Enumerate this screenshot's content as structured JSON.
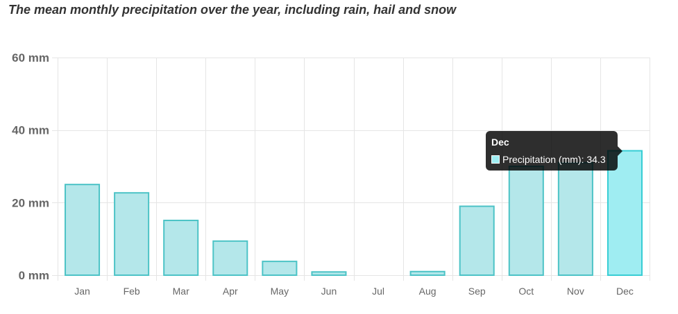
{
  "chart_data": {
    "type": "bar",
    "title": "The mean monthly precipitation over the year, including rain, hail and snow",
    "categories": [
      "Jan",
      "Feb",
      "Mar",
      "Apr",
      "May",
      "Jun",
      "Jul",
      "Aug",
      "Sep",
      "Oct",
      "Nov",
      "Dec"
    ],
    "series": [
      {
        "name": "Precipitation (mm)",
        "values": [
          25.0,
          22.7,
          15.1,
          9.4,
          3.8,
          0.9,
          0.0,
          1.0,
          19.0,
          30.0,
          31.0,
          34.3
        ]
      }
    ],
    "y_ticks": [
      "0 mm",
      "20 mm",
      "40 mm",
      "60 mm"
    ],
    "ylim": [
      0,
      60
    ],
    "grid": true,
    "colors": {
      "bar_fill": "#b4e7ea",
      "bar_border": "#4cc3c6",
      "bar_fill_active": "#9fedf2",
      "bar_border_active": "#36cdd4",
      "grid": "#e5e5e5"
    },
    "tooltip": {
      "title": "Dec",
      "label": "Precipitation (mm): 34.3",
      "active_index": 11
    }
  }
}
